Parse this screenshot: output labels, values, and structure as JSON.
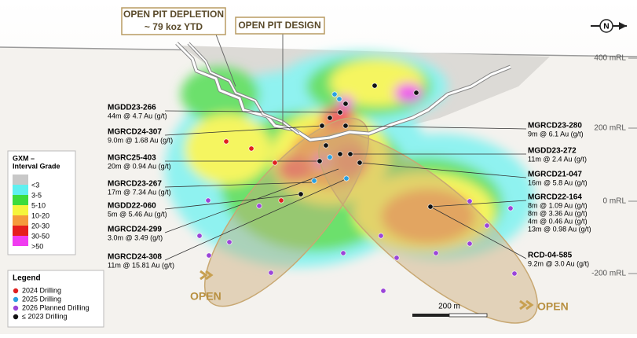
{
  "labels": {
    "depletion": [
      "OPEN PIT DEPLETION",
      "~ 79 koz YTD"
    ],
    "design": "OPEN PIT DESIGN",
    "north": "N",
    "open_left": "OPEN",
    "open_right": "OPEN",
    "scale": "200 m"
  },
  "elevations": [
    "400 mRL",
    "200 mRL",
    "0 mRL",
    "-200 mRL"
  ],
  "callouts_left": [
    {
      "name": "MGDD23-266",
      "lines": [
        "44m @ 4.7 Au (g/t)"
      ]
    },
    {
      "name": "MGRCD24-307",
      "lines": [
        "9.0m @ 1.68 Au (g/t)"
      ]
    },
    {
      "name": "MGRC25-403",
      "lines": [
        "20m @ 0.94 Au (g/t)"
      ]
    },
    {
      "name": "MGRCD23-267",
      "lines": [
        "17m @ 7.34 Au (g/t)"
      ]
    },
    {
      "name": "MGDD22-060",
      "lines": [
        "5m @ 5.46 Au (g/t)"
      ]
    },
    {
      "name": "MGRCD24-299",
      "lines": [
        "3.0m @ 3.49 (g/t)"
      ]
    },
    {
      "name": "MGRCD24-308",
      "lines": [
        "11m @ 15.81 Au (g/t)"
      ]
    }
  ],
  "callouts_right": [
    {
      "name": "MGRCD23-280",
      "lines": [
        "9m @ 6.1 Au (g/t)"
      ]
    },
    {
      "name": "MGDD23-272",
      "lines": [
        "11m @ 2.4 Au (g/t)"
      ]
    },
    {
      "name": "MGRCD21-047",
      "lines": [
        "16m @ 5.8 Au (g/t)"
      ]
    },
    {
      "name": "MGRCD22-164",
      "lines": [
        "8m @ 1.09 Au (g/t)",
        "8m @ 3.36 Au (g/t)",
        "4m @ 0.46 Au (g/t)",
        "13m @ 0.98 Au (g/t)"
      ]
    },
    {
      "name": "RCD-04-585",
      "lines": [
        "9.2m @ 3.0 Au (g/t)"
      ]
    }
  ],
  "grade_legend": {
    "title": [
      "GXM –",
      "Interval Grade"
    ],
    "swatches": [
      "#c8c8c8",
      "#5ff0f0",
      "#3cdc3c",
      "#f5f53c",
      "#f59a3c",
      "#e61e1e",
      "#f03cf0"
    ],
    "classes": [
      "<3",
      "3-5",
      "5-10",
      "10-20",
      "20-30",
      "30-50",
      ">50"
    ]
  },
  "legend": {
    "title": "Legend",
    "items": [
      {
        "label": "2024 Drilling",
        "color": "#e02020"
      },
      {
        "label": "2025 Drilling",
        "color": "#2aa0e0"
      },
      {
        "label": "2026 Planned Drilling",
        "color": "#9b45d8"
      },
      {
        "label": "≤ 2023 Drilling",
        "color": "#111111"
      }
    ]
  }
}
